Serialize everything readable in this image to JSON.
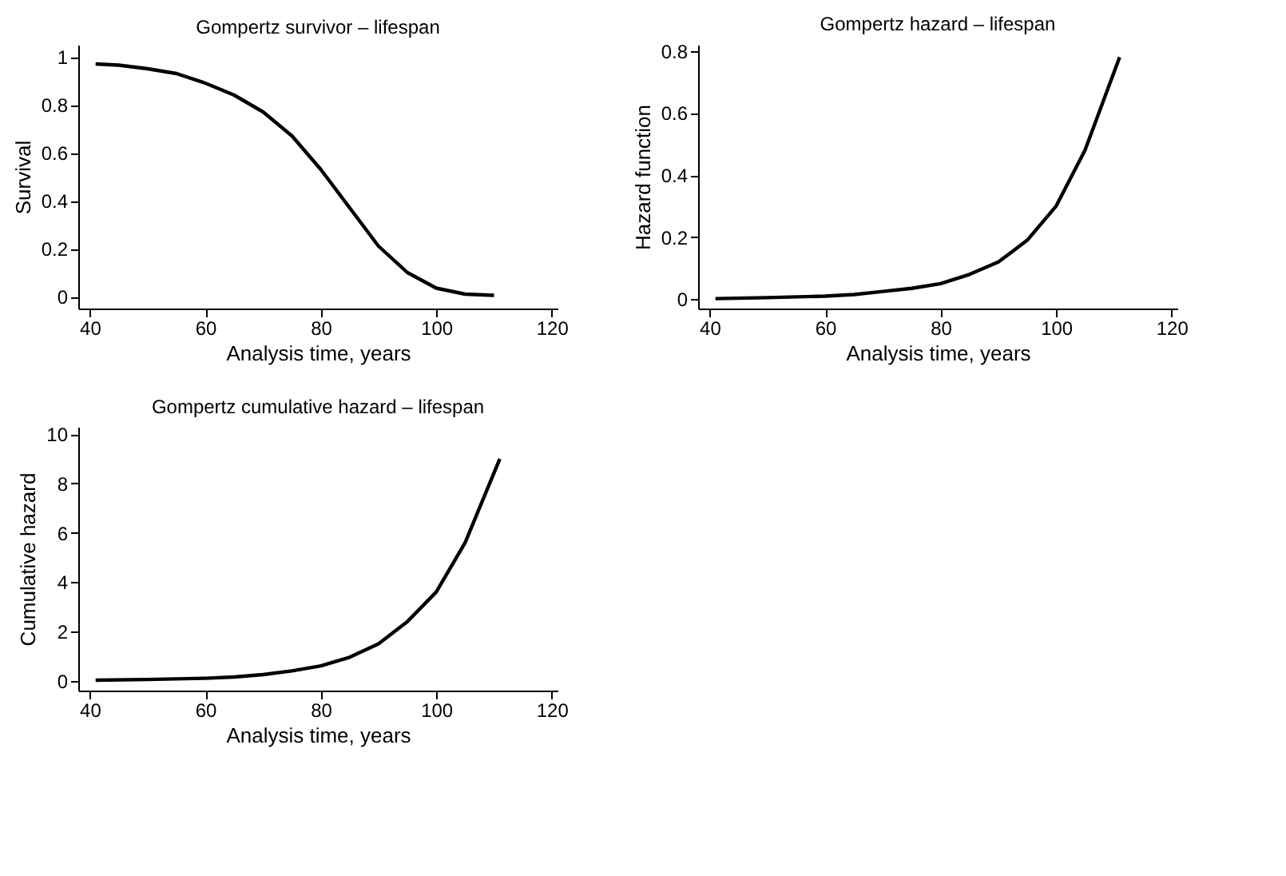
{
  "chart_data": [
    {
      "type": "line",
      "title": "Gompertz survivor – lifespan",
      "xlabel": "Analysis time, years",
      "ylabel": "Survival",
      "x": [
        41,
        45,
        50,
        55,
        60,
        65,
        70,
        75,
        80,
        85,
        90,
        95,
        100,
        105,
        110
      ],
      "series": [
        {
          "color": "#000000",
          "values": [
            0.97,
            0.965,
            0.95,
            0.93,
            0.89,
            0.84,
            0.77,
            0.67,
            0.53,
            0.37,
            0.21,
            0.1,
            0.035,
            0.01,
            0.005
          ]
        }
      ],
      "xlim": [
        38,
        121
      ],
      "ylim": [
        -0.05,
        1.05
      ],
      "xticks": [
        40,
        60,
        80,
        100,
        120
      ],
      "yticks": [
        0,
        0.2,
        0.4,
        0.6,
        0.8,
        1
      ],
      "grid": false
    },
    {
      "type": "line",
      "title": "Gompertz hazard – lifespan",
      "xlabel": "Analysis time, years",
      "ylabel": "Hazard function",
      "x": [
        41,
        50,
        60,
        65,
        70,
        75,
        80,
        85,
        90,
        95,
        100,
        105,
        111
      ],
      "series": [
        {
          "color": "#000000",
          "values": [
            0.002,
            0.005,
            0.01,
            0.015,
            0.025,
            0.035,
            0.05,
            0.08,
            0.12,
            0.19,
            0.3,
            0.48,
            0.78
          ]
        }
      ],
      "xlim": [
        38,
        121
      ],
      "ylim": [
        -0.03,
        0.82
      ],
      "xticks": [
        40,
        60,
        80,
        100,
        120
      ],
      "yticks": [
        0,
        0.2,
        0.4,
        0.6,
        0.8
      ],
      "grid": false
    },
    {
      "type": "line",
      "title": "Gompertz cumulative hazard – lifespan",
      "xlabel": "Analysis time, years",
      "ylabel": "Cumulative hazard",
      "x": [
        41,
        50,
        60,
        65,
        70,
        75,
        80,
        85,
        90,
        95,
        100,
        105,
        111
      ],
      "series": [
        {
          "color": "#000000",
          "values": [
            0.02,
            0.05,
            0.1,
            0.15,
            0.25,
            0.4,
            0.6,
            0.95,
            1.5,
            2.4,
            3.6,
            5.6,
            9.0
          ]
        }
      ],
      "xlim": [
        38,
        121
      ],
      "ylim": [
        -0.4,
        10.3
      ],
      "xticks": [
        40,
        60,
        80,
        100,
        120
      ],
      "yticks": [
        0,
        2,
        4,
        6,
        8,
        10
      ],
      "grid": false
    }
  ]
}
